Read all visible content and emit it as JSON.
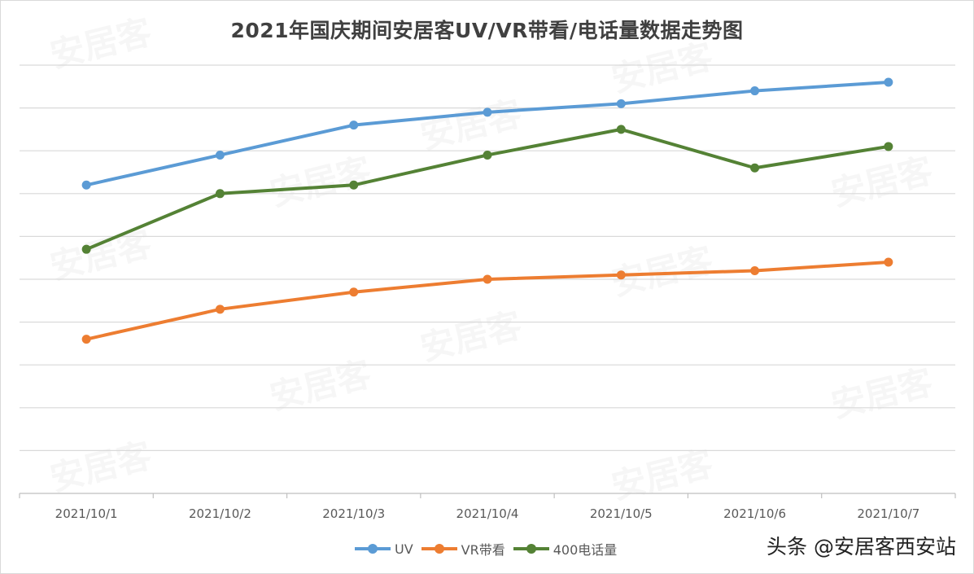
{
  "watermark_text": "安居客",
  "credit": "头条 @安居客西安站",
  "chart_data": {
    "type": "line",
    "title": "2021年国庆期间安居客UV/VR带看/电话量数据走势图",
    "xlabel": "",
    "ylabel": "",
    "categories": [
      "2021/10/1",
      "2021/10/2",
      "2021/10/3",
      "2021/10/4",
      "2021/10/5",
      "2021/10/6",
      "2021/10/7"
    ],
    "ylim": [
      0,
      10
    ],
    "grid": true,
    "legend_position": "bottom",
    "series": [
      {
        "name": "UV",
        "color": "#5b9bd5",
        "values": [
          7.2,
          7.9,
          8.6,
          8.9,
          9.1,
          9.4,
          9.6
        ]
      },
      {
        "name": "VR带看",
        "color": "#ed7d31",
        "values": [
          3.6,
          4.3,
          4.7,
          5.0,
          5.1,
          5.2,
          5.4
        ]
      },
      {
        "name": "400电话量",
        "color": "#548235",
        "values": [
          5.7,
          7.0,
          7.2,
          7.9,
          8.5,
          7.6,
          8.1
        ]
      }
    ]
  }
}
